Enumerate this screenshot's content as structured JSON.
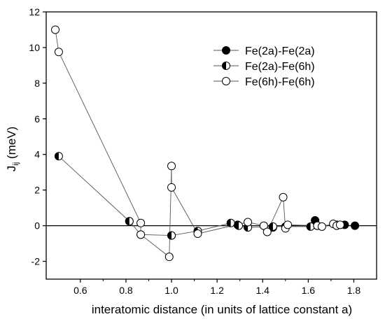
{
  "chart_data": {
    "type": "scatter",
    "title": "",
    "xlabel": "interatomic distance (in units of lattice constant a)",
    "ylabel": "J",
    "ylabel_sub": "ij",
    "ylabel_unit": " (meV)",
    "xlim": [
      0.45,
      1.9
    ],
    "ylim": [
      -3,
      12
    ],
    "xticks": [
      "0.6",
      "0.8",
      "1.0",
      "1.2",
      "1.4",
      "1.6",
      "1.8"
    ],
    "yticks": [
      "-2",
      "0",
      "2",
      "4",
      "6",
      "8",
      "10",
      "12"
    ],
    "zero_line": true,
    "grid": false,
    "legend_position": "top-right",
    "series": [
      {
        "name": "Fe(2a)-Fe(2a)",
        "marker": "filled",
        "connected": false,
        "x": [
          0.815,
          1.0,
          1.29,
          1.445,
          1.63,
          1.76,
          1.805
        ],
        "y": [
          0.25,
          -0.55,
          0.05,
          -0.1,
          0.3,
          0.05,
          0.0
        ]
      },
      {
        "name": "Fe(2a)-Fe(6h)",
        "marker": "half",
        "connected": true,
        "x": [
          0.505,
          0.815,
          0.865,
          1.0,
          1.115,
          1.26,
          1.295,
          1.335,
          1.445,
          1.5,
          1.61,
          1.64,
          1.725
        ],
        "y": [
          3.9,
          0.25,
          -0.5,
          -0.55,
          -0.3,
          0.15,
          0.0,
          -0.1,
          -0.05,
          -0.05,
          -0.05,
          0.0,
          0.05
        ]
      },
      {
        "name": "Fe(6h)-Fe(6h)",
        "marker": "open",
        "connected": true,
        "x": [
          0.49,
          0.505,
          0.865,
          0.865,
          0.99,
          1.0,
          1.0,
          1.115,
          1.335,
          1.405,
          1.42,
          1.49,
          1.5,
          1.51,
          1.64,
          1.66,
          1.71,
          1.725,
          1.74
        ],
        "y": [
          11.0,
          9.75,
          0.15,
          -0.5,
          -1.75,
          3.35,
          2.15,
          -0.45,
          0.2,
          0.0,
          -0.35,
          1.6,
          -0.15,
          0.05,
          0.0,
          -0.05,
          0.1,
          0.0,
          0.05
        ]
      }
    ]
  }
}
